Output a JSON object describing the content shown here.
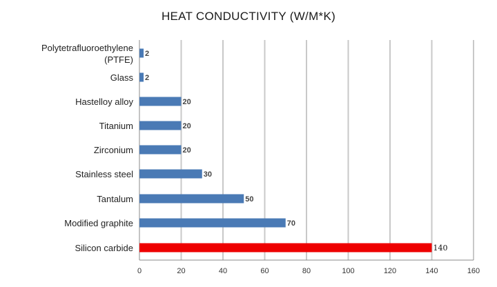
{
  "chart_data": {
    "type": "bar",
    "orientation": "horizontal",
    "title": "HEAT CONDUCTIVITY (W/M*K)",
    "categories": [
      [
        "Polytetrafluoroethylene",
        "(PTFE)"
      ],
      [
        "Glass"
      ],
      [
        "Hastelloy alloy"
      ],
      [
        "Titanium"
      ],
      [
        "Zirconium"
      ],
      [
        "Stainless steel"
      ],
      [
        "Tantalum"
      ],
      [
        "Modified graphite"
      ],
      [
        "Silicon carbide"
      ]
    ],
    "values": [
      2,
      2,
      20,
      20,
      20,
      30,
      50,
      70,
      140
    ],
    "data_labels": [
      "2",
      "2",
      "20",
      "20",
      "20",
      "30",
      "50",
      "70",
      "140"
    ],
    "xlim": [
      0,
      160
    ],
    "xticks": [
      "0",
      "20",
      "40",
      "60",
      "80",
      "100",
      "120",
      "140",
      "160"
    ],
    "grid": "vertical",
    "legend": "none",
    "colors": {
      "bar": "#4a7ab5",
      "highlight": "#ee0000",
      "grid": "#c8c8c8",
      "axis": "#888888"
    },
    "highlight_index": 8
  }
}
